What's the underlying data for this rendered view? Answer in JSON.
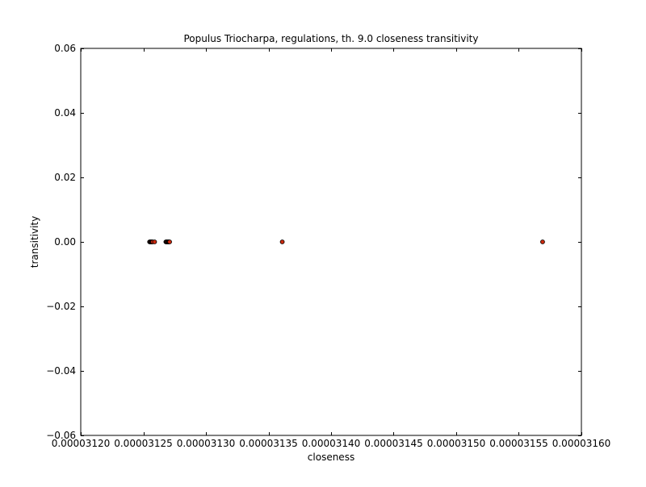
{
  "chart_data": {
    "type": "scatter",
    "title": "Populus Triocharpa, regulations, th. 9.0 closeness transitivity",
    "xlabel": "closeness",
    "ylabel": "transitivity",
    "xlim": [
      3.12e-05,
      3.16e-05
    ],
    "ylim": [
      -0.06,
      0.06
    ],
    "xticks": [
      3.12e-05,
      3.125e-05,
      3.13e-05,
      3.135e-05,
      3.14e-05,
      3.145e-05,
      3.15e-05,
      3.155e-05,
      3.16e-05
    ],
    "xtick_labels": [
      "0.00003120",
      "0.00003125",
      "0.00003130",
      "0.00003135",
      "0.00003140",
      "0.00003145",
      "0.00003150",
      "0.00003155",
      "0.00003160"
    ],
    "yticks": [
      -0.06,
      -0.04,
      -0.02,
      0.0,
      0.02,
      0.04,
      0.06
    ],
    "ytick_labels": [
      "−0.06",
      "−0.04",
      "−0.02",
      "0.00",
      "0.02",
      "0.04",
      "0.06"
    ],
    "grid": false,
    "marker_color": "#cc2a0e",
    "marker_edge_color": "#000000",
    "points": [
      {
        "x": 3.1255e-05,
        "y": 0.0
      },
      {
        "x": 3.12555e-05,
        "y": 0.0
      },
      {
        "x": 3.1256e-05,
        "y": 0.0
      },
      {
        "x": 3.12565e-05,
        "y": 0.0
      },
      {
        "x": 3.1257e-05,
        "y": 0.0
      },
      {
        "x": 3.12575e-05,
        "y": 0.0
      },
      {
        "x": 3.1259e-05,
        "y": 0.0
      },
      {
        "x": 3.1268e-05,
        "y": 0.0
      },
      {
        "x": 3.12685e-05,
        "y": 0.0
      },
      {
        "x": 3.1269e-05,
        "y": 0.0
      },
      {
        "x": 3.12695e-05,
        "y": 0.0
      },
      {
        "x": 3.127e-05,
        "y": 0.0
      },
      {
        "x": 3.12705e-05,
        "y": 0.0
      },
      {
        "x": 3.1271e-05,
        "y": 0.0
      },
      {
        "x": 3.1361e-05,
        "y": 0.0
      },
      {
        "x": 3.1569e-05,
        "y": 0.0
      }
    ]
  }
}
